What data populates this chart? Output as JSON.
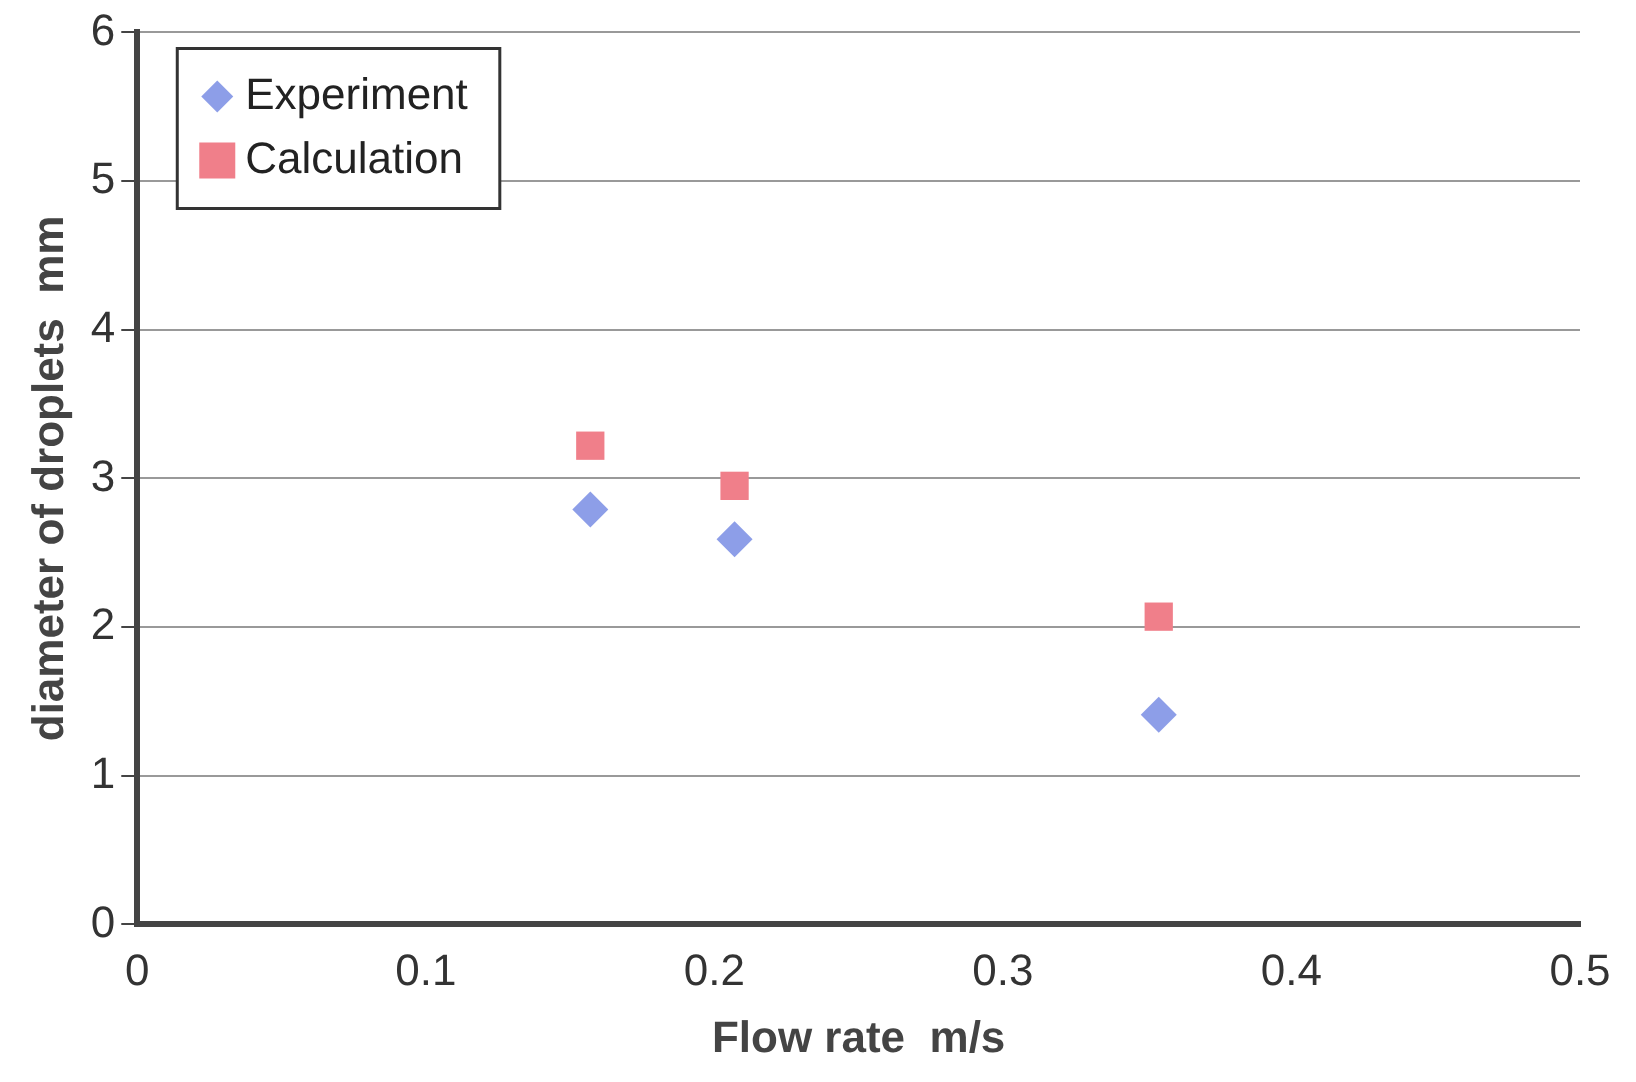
{
  "chart_data": {
    "type": "scatter",
    "xlabel": "Flow rate  m/s",
    "ylabel": "diameter of droplets  mm",
    "xlim": [
      0,
      0.5
    ],
    "xticks": [
      0,
      0.1,
      0.2,
      0.3,
      0.4,
      0.5
    ],
    "ylim": [
      0,
      6
    ],
    "yticks": [
      0,
      1,
      2,
      3,
      4,
      5,
      6
    ],
    "grid": "y",
    "legend": "top left",
    "series": [
      {
        "name": "Experiment",
        "color": "#8d9ee8",
        "marker": "diamond",
        "x": [
          0.157,
          0.207,
          0.354
        ],
        "values": [
          2.79,
          2.59,
          1.41
        ]
      },
      {
        "name": "Calculation",
        "color": "#f07f8a",
        "marker": "square",
        "x": [
          0.157,
          0.207,
          0.354
        ],
        "values": [
          3.22,
          2.95,
          2.07
        ]
      }
    ]
  }
}
